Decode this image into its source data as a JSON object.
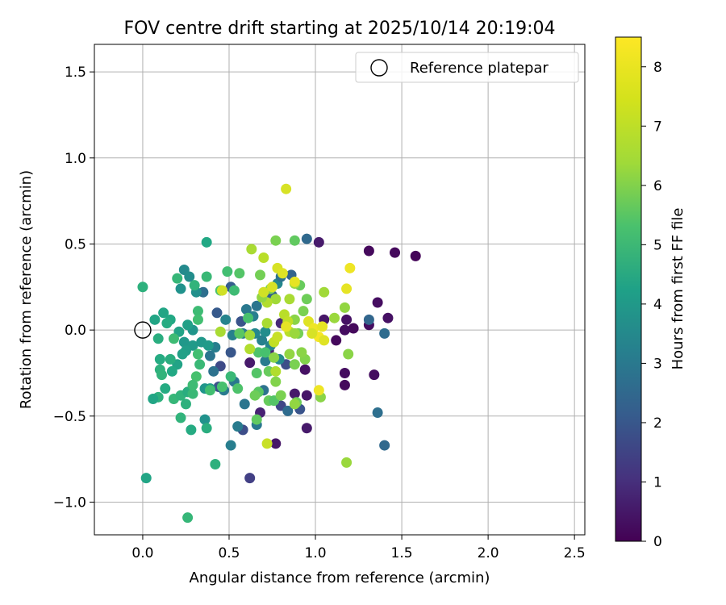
{
  "chart_data": {
    "type": "scatter",
    "title": "FOV centre drift starting at 2025/10/14 20:19:04",
    "xlabel": "Angular distance from reference (arcmin)",
    "ylabel": "Rotation from reference (arcmin)",
    "xlim": [
      -0.28,
      2.56
    ],
    "ylim": [
      -1.19,
      1.66
    ],
    "xticks": [
      0.0,
      0.5,
      1.0,
      1.5,
      2.0,
      2.5
    ],
    "yticks": [
      -1.0,
      -0.5,
      0.0,
      0.5,
      1.0,
      1.5
    ],
    "xtick_labels": [
      "0.0",
      "0.5",
      "1.0",
      "1.5",
      "2.0",
      "2.5"
    ],
    "ytick_labels": [
      "−1.0",
      "−0.5",
      "0.0",
      "0.5",
      "1.0",
      "1.5"
    ],
    "grid": true,
    "legend": {
      "position": "top-right",
      "entries": [
        "Reference platepar"
      ]
    },
    "reference_point": {
      "x": 0.0,
      "y": 0.0,
      "label": "Reference platepar"
    },
    "colorbar": {
      "label": "Hours from first FF file",
      "colormap": "viridis",
      "range": [
        0,
        8.5
      ],
      "ticks": [
        0,
        1,
        2,
        3,
        4,
        5,
        6,
        7,
        8
      ],
      "tick_labels": [
        "0",
        "1",
        "2",
        "3",
        "4",
        "5",
        "6",
        "7",
        "8"
      ]
    },
    "points": [
      {
        "x": 1.31,
        "y": 0.46,
        "h": 0.2
      },
      {
        "x": 1.46,
        "y": 0.45,
        "h": 0.2
      },
      {
        "x": 1.58,
        "y": 0.43,
        "h": 0.1
      },
      {
        "x": 1.36,
        "y": 0.16,
        "h": 0.3
      },
      {
        "x": 1.42,
        "y": 0.07,
        "h": 0.4
      },
      {
        "x": 1.31,
        "y": 0.03,
        "h": 0.3
      },
      {
        "x": 1.22,
        "y": 0.01,
        "h": 0.2
      },
      {
        "x": 1.17,
        "y": 0.0,
        "h": 0.3
      },
      {
        "x": 1.12,
        "y": -0.06,
        "h": 0.2
      },
      {
        "x": 1.18,
        "y": 0.06,
        "h": 0.4
      },
      {
        "x": 1.17,
        "y": -0.25,
        "h": 0.3
      },
      {
        "x": 1.17,
        "y": -0.32,
        "h": 0.2
      },
      {
        "x": 1.34,
        "y": -0.26,
        "h": 0.3
      },
      {
        "x": 1.05,
        "y": 0.06,
        "h": 0.5
      },
      {
        "x": 1.02,
        "y": 0.51,
        "h": 0.6
      },
      {
        "x": 0.94,
        "y": -0.23,
        "h": 0.4
      },
      {
        "x": 0.95,
        "y": -0.38,
        "h": 0.5
      },
      {
        "x": 0.95,
        "y": -0.57,
        "h": 0.6
      },
      {
        "x": 0.88,
        "y": -0.37,
        "h": 0.6
      },
      {
        "x": 0.77,
        "y": -0.66,
        "h": 0.5
      },
      {
        "x": 0.68,
        "y": -0.48,
        "h": 0.8
      },
      {
        "x": 0.62,
        "y": -0.19,
        "h": 0.6
      },
      {
        "x": 0.73,
        "y": -0.12,
        "h": 0.9
      },
      {
        "x": 0.8,
        "y": 0.04,
        "h": 1.0
      },
      {
        "x": 0.62,
        "y": -0.86,
        "h": 1.6
      },
      {
        "x": 0.58,
        "y": -0.58,
        "h": 2.0
      },
      {
        "x": 0.8,
        "y": -0.44,
        "h": 1.8
      },
      {
        "x": 0.91,
        "y": -0.46,
        "h": 2.2
      },
      {
        "x": 0.83,
        "y": -0.2,
        "h": 2.0
      },
      {
        "x": 0.45,
        "y": -0.21,
        "h": 1.9
      },
      {
        "x": 0.44,
        "y": -0.33,
        "h": 2.1
      },
      {
        "x": 0.51,
        "y": -0.13,
        "h": 2.3
      },
      {
        "x": 0.57,
        "y": 0.05,
        "h": 2.2
      },
      {
        "x": 0.43,
        "y": 0.1,
        "h": 2.4
      },
      {
        "x": 0.51,
        "y": 0.25,
        "h": 2.5
      },
      {
        "x": 0.95,
        "y": 0.53,
        "h": 2.9
      },
      {
        "x": 0.86,
        "y": 0.32,
        "h": 2.7
      },
      {
        "x": 0.75,
        "y": 0.2,
        "h": 2.6
      },
      {
        "x": 1.31,
        "y": 0.06,
        "h": 2.8
      },
      {
        "x": 1.4,
        "y": -0.02,
        "h": 3.0
      },
      {
        "x": 1.36,
        "y": -0.48,
        "h": 3.1
      },
      {
        "x": 1.4,
        "y": -0.67,
        "h": 2.9
      },
      {
        "x": 0.84,
        "y": -0.47,
        "h": 3.0
      },
      {
        "x": 0.7,
        "y": -0.35,
        "h": 3.2
      },
      {
        "x": 0.66,
        "y": -0.55,
        "h": 3.4
      },
      {
        "x": 0.51,
        "y": -0.67,
        "h": 3.6
      },
      {
        "x": 0.55,
        "y": -0.56,
        "h": 3.5
      },
      {
        "x": 0.59,
        "y": -0.43,
        "h": 3.3
      },
      {
        "x": 0.53,
        "y": -0.3,
        "h": 3.4
      },
      {
        "x": 0.47,
        "y": -0.35,
        "h": 3.5
      },
      {
        "x": 0.41,
        "y": -0.24,
        "h": 3.2
      },
      {
        "x": 0.39,
        "y": -0.15,
        "h": 3.3
      },
      {
        "x": 0.35,
        "y": 0.22,
        "h": 3.1
      },
      {
        "x": 0.42,
        "y": -0.1,
        "h": 3.6
      },
      {
        "x": 0.48,
        "y": 0.06,
        "h": 3.8
      },
      {
        "x": 0.52,
        "y": -0.03,
        "h": 3.7
      },
      {
        "x": 0.58,
        "y": -0.02,
        "h": 3.5
      },
      {
        "x": 0.6,
        "y": 0.12,
        "h": 3.4
      },
      {
        "x": 0.64,
        "y": 0.08,
        "h": 3.6
      },
      {
        "x": 0.66,
        "y": 0.14,
        "h": 3.3
      },
      {
        "x": 0.65,
        "y": -0.02,
        "h": 3.9
      },
      {
        "x": 0.69,
        "y": -0.06,
        "h": 3.7
      },
      {
        "x": 0.71,
        "y": -0.18,
        "h": 3.5
      },
      {
        "x": 0.74,
        "y": -0.09,
        "h": 3.8
      },
      {
        "x": 0.79,
        "y": -0.17,
        "h": 4.0
      },
      {
        "x": 0.71,
        "y": -0.01,
        "h": 4.1
      },
      {
        "x": 0.78,
        "y": 0.27,
        "h": 3.9
      },
      {
        "x": 0.8,
        "y": 0.31,
        "h": 3.2
      },
      {
        "x": 0.24,
        "y": 0.35,
        "h": 4.0
      },
      {
        "x": 0.27,
        "y": 0.31,
        "h": 4.1
      },
      {
        "x": 0.31,
        "y": 0.22,
        "h": 4.2
      },
      {
        "x": 0.22,
        "y": 0.24,
        "h": 4.3
      },
      {
        "x": 0.29,
        "y": 0.0,
        "h": 4.4
      },
      {
        "x": 0.24,
        "y": -0.07,
        "h": 4.5
      },
      {
        "x": 0.29,
        "y": -0.09,
        "h": 4.6
      },
      {
        "x": 0.25,
        "y": -0.12,
        "h": 4.7
      },
      {
        "x": 0.23,
        "y": -0.14,
        "h": 4.8
      },
      {
        "x": 0.2,
        "y": -0.2,
        "h": 4.9
      },
      {
        "x": 0.34,
        "y": -0.07,
        "h": 4.5
      },
      {
        "x": 0.38,
        "y": -0.09,
        "h": 4.6
      },
      {
        "x": 0.36,
        "y": -0.34,
        "h": 4.4
      },
      {
        "x": 0.39,
        "y": -0.34,
        "h": 4.7
      },
      {
        "x": 0.36,
        "y": -0.52,
        "h": 4.3
      },
      {
        "x": 0.26,
        "y": 0.03,
        "h": 4.8
      },
      {
        "x": 0.21,
        "y": -0.01,
        "h": 4.9
      },
      {
        "x": 0.12,
        "y": 0.1,
        "h": 5.0
      },
      {
        "x": 0.16,
        "y": 0.06,
        "h": 5.1
      },
      {
        "x": 0.14,
        "y": 0.04,
        "h": 5.2
      },
      {
        "x": 0.07,
        "y": 0.06,
        "h": 5.0
      },
      {
        "x": 0.09,
        "y": -0.05,
        "h": 5.3
      },
      {
        "x": 0.1,
        "y": -0.17,
        "h": 5.2
      },
      {
        "x": 0.1,
        "y": -0.23,
        "h": 5.4
      },
      {
        "x": 0.16,
        "y": -0.17,
        "h": 5.3
      },
      {
        "x": 0.17,
        "y": -0.24,
        "h": 5.1
      },
      {
        "x": 0.11,
        "y": -0.26,
        "h": 5.5
      },
      {
        "x": 0.13,
        "y": -0.34,
        "h": 5.2
      },
      {
        "x": 0.09,
        "y": -0.39,
        "h": 5.4
      },
      {
        "x": 0.06,
        "y": -0.4,
        "h": 5.0
      },
      {
        "x": 0.18,
        "y": -0.4,
        "h": 5.6
      },
      {
        "x": 0.22,
        "y": -0.38,
        "h": 5.5
      },
      {
        "x": 0.26,
        "y": -0.36,
        "h": 5.3
      },
      {
        "x": 0.29,
        "y": -0.37,
        "h": 5.7
      },
      {
        "x": 0.25,
        "y": -0.43,
        "h": 5.4
      },
      {
        "x": 0.22,
        "y": -0.51,
        "h": 5.5
      },
      {
        "x": 0.28,
        "y": -0.58,
        "h": 5.2
      },
      {
        "x": 0.37,
        "y": -0.57,
        "h": 5.3
      },
      {
        "x": 0.42,
        "y": -0.78,
        "h": 5.4
      },
      {
        "x": 0.02,
        "y": -0.86,
        "h": 5.0
      },
      {
        "x": 0.26,
        "y": -1.09,
        "h": 5.6
      },
      {
        "x": 0.37,
        "y": 0.51,
        "h": 5.1
      },
      {
        "x": 0.37,
        "y": 0.31,
        "h": 5.7
      },
      {
        "x": 0.3,
        "y": 0.26,
        "h": 5.5
      },
      {
        "x": 0.2,
        "y": 0.3,
        "h": 5.6
      },
      {
        "x": 0.0,
        "y": 0.25,
        "h": 5.4
      },
      {
        "x": 0.32,
        "y": 0.11,
        "h": 5.8
      },
      {
        "x": 0.32,
        "y": 0.06,
        "h": 5.9
      },
      {
        "x": 0.18,
        "y": -0.05,
        "h": 5.8
      },
      {
        "x": 0.32,
        "y": -0.14,
        "h": 5.9
      },
      {
        "x": 0.33,
        "y": -0.2,
        "h": 5.7
      },
      {
        "x": 0.31,
        "y": -0.27,
        "h": 6.0
      },
      {
        "x": 0.29,
        "y": -0.32,
        "h": 5.8
      },
      {
        "x": 0.39,
        "y": -0.35,
        "h": 5.9
      },
      {
        "x": 0.46,
        "y": -0.33,
        "h": 6.0
      },
      {
        "x": 0.51,
        "y": -0.27,
        "h": 5.7
      },
      {
        "x": 0.55,
        "y": -0.34,
        "h": 6.1
      },
      {
        "x": 0.49,
        "y": 0.34,
        "h": 5.9
      },
      {
        "x": 0.56,
        "y": 0.33,
        "h": 6.2
      },
      {
        "x": 0.45,
        "y": 0.23,
        "h": 6.1
      },
      {
        "x": 0.53,
        "y": 0.23,
        "h": 5.8
      },
      {
        "x": 0.61,
        "y": 0.07,
        "h": 6.0
      },
      {
        "x": 0.56,
        "y": -0.02,
        "h": 6.3
      },
      {
        "x": 0.67,
        "y": -0.13,
        "h": 6.1
      },
      {
        "x": 0.71,
        "y": -0.13,
        "h": 6.0
      },
      {
        "x": 0.66,
        "y": -0.25,
        "h": 6.2
      },
      {
        "x": 0.73,
        "y": -0.24,
        "h": 6.5
      },
      {
        "x": 0.67,
        "y": -0.36,
        "h": 6.3
      },
      {
        "x": 0.65,
        "y": -0.38,
        "h": 6.6
      },
      {
        "x": 0.66,
        "y": -0.52,
        "h": 6.4
      },
      {
        "x": 0.73,
        "y": -0.41,
        "h": 6.5
      },
      {
        "x": 0.76,
        "y": -0.41,
        "h": 6.2
      },
      {
        "x": 0.89,
        "y": -0.42,
        "h": 6.6
      },
      {
        "x": 0.88,
        "y": 0.52,
        "h": 6.4
      },
      {
        "x": 0.77,
        "y": 0.52,
        "h": 6.8
      },
      {
        "x": 0.68,
        "y": 0.32,
        "h": 6.7
      },
      {
        "x": 0.74,
        "y": 0.24,
        "h": 6.9
      },
      {
        "x": 0.91,
        "y": 0.26,
        "h": 6.5
      },
      {
        "x": 0.95,
        "y": 0.18,
        "h": 6.6
      },
      {
        "x": 0.93,
        "y": 0.11,
        "h": 6.8
      },
      {
        "x": 0.88,
        "y": 0.06,
        "h": 7.0
      },
      {
        "x": 0.9,
        "y": -0.02,
        "h": 6.7
      },
      {
        "x": 0.94,
        "y": -0.17,
        "h": 6.9
      },
      {
        "x": 0.88,
        "y": -0.2,
        "h": 6.8
      },
      {
        "x": 0.92,
        "y": -0.13,
        "h": 7.0
      },
      {
        "x": 0.85,
        "y": -0.14,
        "h": 7.1
      },
      {
        "x": 0.76,
        "y": -0.16,
        "h": 7.0
      },
      {
        "x": 0.77,
        "y": -0.3,
        "h": 6.9
      },
      {
        "x": 0.8,
        "y": -0.38,
        "h": 6.8
      },
      {
        "x": 0.88,
        "y": -0.43,
        "h": 7.1
      },
      {
        "x": 1.03,
        "y": -0.39,
        "h": 7.0
      },
      {
        "x": 1.18,
        "y": -0.77,
        "h": 7.2
      },
      {
        "x": 1.19,
        "y": -0.14,
        "h": 7.0
      },
      {
        "x": 1.17,
        "y": 0.13,
        "h": 7.1
      },
      {
        "x": 1.11,
        "y": 0.07,
        "h": 7.2
      },
      {
        "x": 1.05,
        "y": 0.22,
        "h": 7.3
      },
      {
        "x": 0.88,
        "y": 0.27,
        "h": 7.2
      },
      {
        "x": 0.85,
        "y": 0.18,
        "h": 7.4
      },
      {
        "x": 0.77,
        "y": 0.18,
        "h": 7.3
      },
      {
        "x": 0.72,
        "y": 0.16,
        "h": 7.5
      },
      {
        "x": 0.69,
        "y": 0.19,
        "h": 7.1
      },
      {
        "x": 0.63,
        "y": 0.47,
        "h": 7.4
      },
      {
        "x": 0.7,
        "y": 0.42,
        "h": 7.6
      },
      {
        "x": 0.82,
        "y": 0.09,
        "h": 7.6
      },
      {
        "x": 0.84,
        "y": 0.05,
        "h": 7.7
      },
      {
        "x": 0.72,
        "y": 0.04,
        "h": 7.4
      },
      {
        "x": 0.62,
        "y": -0.03,
        "h": 7.3
      },
      {
        "x": 0.62,
        "y": -0.11,
        "h": 7.5
      },
      {
        "x": 0.85,
        "y": -0.01,
        "h": 7.6
      },
      {
        "x": 0.88,
        "y": -0.02,
        "h": 7.2
      },
      {
        "x": 0.72,
        "y": -0.66,
        "h": 7.8
      },
      {
        "x": 0.76,
        "y": -0.07,
        "h": 7.7
      },
      {
        "x": 0.78,
        "y": -0.04,
        "h": 7.8
      },
      {
        "x": 0.77,
        "y": -0.24,
        "h": 7.5
      },
      {
        "x": 0.45,
        "y": -0.01,
        "h": 7.4
      },
      {
        "x": 0.46,
        "y": 0.23,
        "h": 7.9
      },
      {
        "x": 0.83,
        "y": 0.82,
        "h": 8.0
      },
      {
        "x": 0.78,
        "y": 0.36,
        "h": 8.0
      },
      {
        "x": 0.81,
        "y": 0.33,
        "h": 8.1
      },
      {
        "x": 0.88,
        "y": 0.28,
        "h": 8.2
      },
      {
        "x": 0.75,
        "y": 0.25,
        "h": 8.0
      },
      {
        "x": 0.7,
        "y": 0.22,
        "h": 7.9
      },
      {
        "x": 1.18,
        "y": 0.24,
        "h": 8.2
      },
      {
        "x": 1.2,
        "y": 0.36,
        "h": 8.3
      },
      {
        "x": 0.96,
        "y": 0.05,
        "h": 8.1
      },
      {
        "x": 0.99,
        "y": 0.01,
        "h": 8.3
      },
      {
        "x": 1.04,
        "y": 0.02,
        "h": 8.2
      },
      {
        "x": 1.02,
        "y": -0.04,
        "h": 8.4
      },
      {
        "x": 1.05,
        "y": -0.06,
        "h": 8.1
      },
      {
        "x": 0.98,
        "y": -0.02,
        "h": 8.0
      },
      {
        "x": 1.02,
        "y": -0.35,
        "h": 8.3
      },
      {
        "x": 0.83,
        "y": 0.02,
        "h": 8.2
      }
    ]
  }
}
